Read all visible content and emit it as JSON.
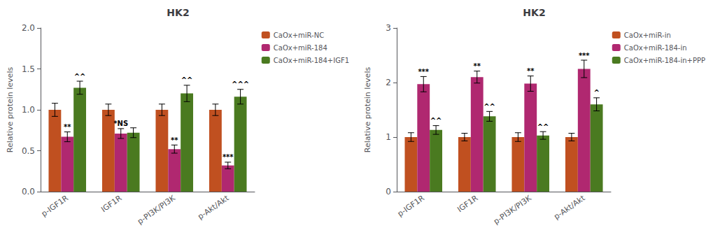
{
  "chart_data": [
    {
      "type": "bar",
      "title": "HK2",
      "categories": [
        "p-IGF1R",
        "IGF1R",
        "p-PI3K/PI3K",
        "p-Akt/Akt"
      ],
      "series": [
        {
          "name": "CaOx+miR-NC",
          "color": "#C05020",
          "values": [
            1.0,
            1.0,
            1.0,
            1.0
          ],
          "errors": [
            0.08,
            0.07,
            0.07,
            0.07
          ]
        },
        {
          "name": "CaOx+miR-184",
          "color": "#B02870",
          "values": [
            0.67,
            0.71,
            0.52,
            0.32
          ],
          "errors": [
            0.06,
            0.06,
            0.05,
            0.04
          ]
        },
        {
          "name": "CaOx+miR-184+IGF1",
          "color": "#4A7A20",
          "values": [
            1.27,
            0.72,
            1.2,
            1.16
          ],
          "errors": [
            0.08,
            0.06,
            0.1,
            0.09
          ]
        }
      ],
      "ylim": [
        0,
        2.0
      ],
      "yticks": [
        {
          "value": 0,
          "label": "0.0"
        },
        0.5,
        {
          "value": 1,
          "label": "1.0"
        },
        1.5,
        {
          "value": 2,
          "label": "2.0"
        }
      ],
      "ylabel": "Relative protein levels",
      "annotations": [
        {
          "category": "p-IGF1R",
          "series": "CaOx+miR-184",
          "text": "**"
        },
        {
          "category": "p-IGF1R",
          "series": "CaOx+miR-184+IGF1",
          "text": "^^"
        },
        {
          "category": "IGF1R",
          "series": "CaOx+miR-184",
          "text": "*NS"
        },
        {
          "category": "p-PI3K/PI3K",
          "series": "CaOx+miR-184",
          "text": "**"
        },
        {
          "category": "p-PI3K/PI3K",
          "series": "CaOx+miR-184+IGF1",
          "text": "^^"
        },
        {
          "category": "p-Akt/Akt",
          "series": "CaOx+miR-184",
          "text": "***"
        },
        {
          "category": "p-Akt/Akt",
          "series": "CaOx+miR-184+IGF1",
          "text": "^^^"
        }
      ],
      "legend": "upper right",
      "grid": false
    },
    {
      "type": "bar",
      "title": "HK2",
      "categories": [
        "p-IGF1R",
        "IGF1R",
        "p-PI3K/PI3K",
        "p-Akt/Akt"
      ],
      "series": [
        {
          "name": "CaOx+miR-in",
          "color": "#C05020",
          "values": [
            1.0,
            1.0,
            1.0,
            1.0
          ],
          "errors": [
            0.08,
            0.07,
            0.08,
            0.07
          ]
        },
        {
          "name": "CaOx+miR-184-in",
          "color": "#B02870",
          "values": [
            1.97,
            2.1,
            1.98,
            2.25
          ],
          "errors": [
            0.14,
            0.11,
            0.14,
            0.16
          ]
        },
        {
          "name": "CaOx+miR-184-in+PPP",
          "color": "#4A7A20",
          "values": [
            1.13,
            1.38,
            1.03,
            1.6
          ],
          "errors": [
            0.08,
            0.09,
            0.07,
            0.12
          ]
        }
      ],
      "ylim": [
        0,
        3.0
      ],
      "yticks": [
        0,
        1,
        2,
        3
      ],
      "ylabel": "Relative protein levels",
      "annotations": [
        {
          "category": "p-IGF1R",
          "series": "CaOx+miR-184-in",
          "text": "***"
        },
        {
          "category": "p-IGF1R",
          "series": "CaOx+miR-184-in+PPP",
          "text": "^^"
        },
        {
          "category": "IGF1R",
          "series": "CaOx+miR-184-in",
          "text": "**"
        },
        {
          "category": "IGF1R",
          "series": "CaOx+miR-184-in+PPP",
          "text": "^^"
        },
        {
          "category": "p-PI3K/PI3K",
          "series": "CaOx+miR-184-in",
          "text": "**"
        },
        {
          "category": "p-PI3K/PI3K",
          "series": "CaOx+miR-184-in+PPP",
          "text": "^^"
        },
        {
          "category": "p-Akt/Akt",
          "series": "CaOx+miR-184-in",
          "text": "***"
        },
        {
          "category": "p-Akt/Akt",
          "series": "CaOx+miR-184-in+PPP",
          "text": "^"
        }
      ],
      "legend": "upper right",
      "grid": false
    }
  ]
}
